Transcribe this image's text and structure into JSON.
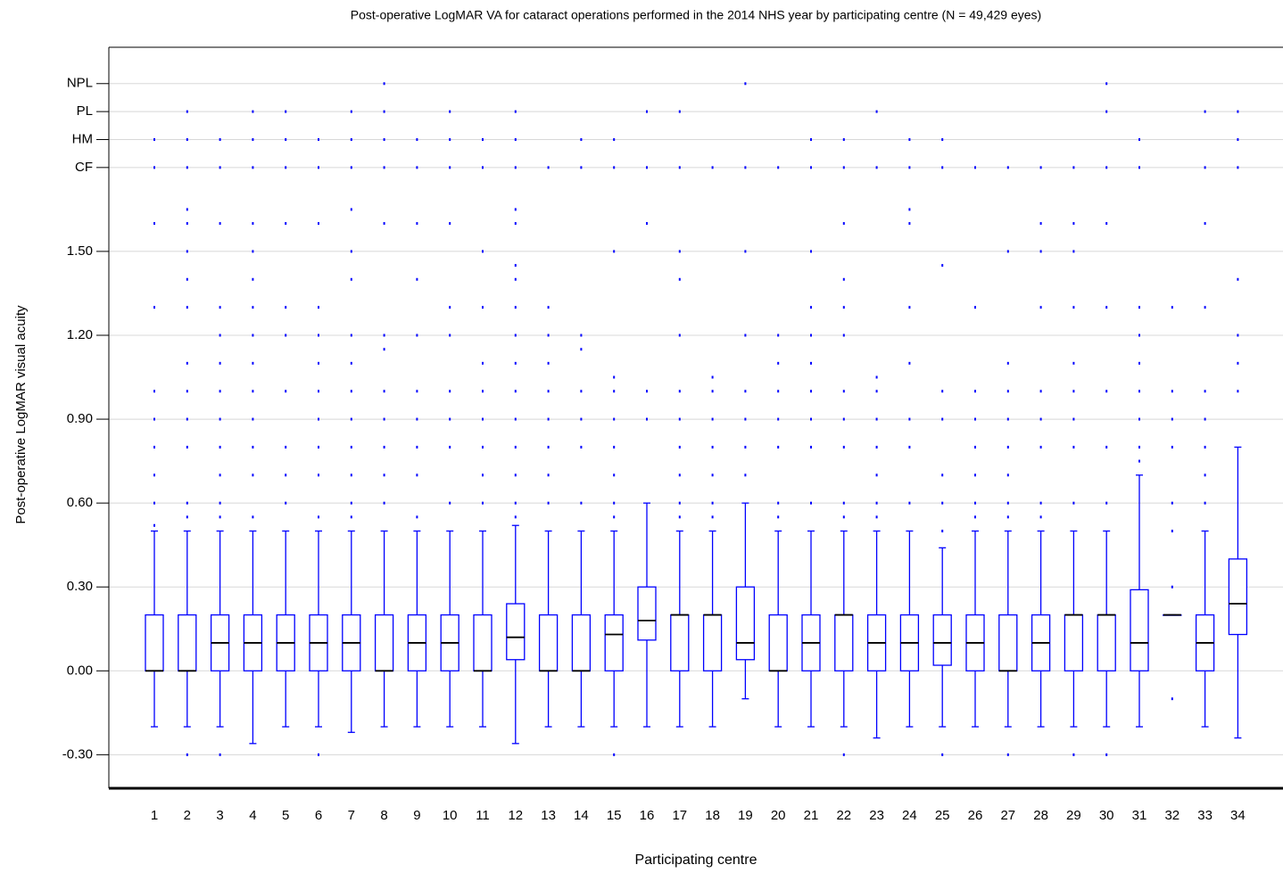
{
  "chart_data": {
    "type": "box",
    "title": "Post-operative LogMAR VA for cataract operations performed in the 2014 NHS year by participating centre (N = 49,429 eyes)",
    "x_label": "Participating centre",
    "y_label": "Post-operative LogMAR visual acuity",
    "color": "#0000ff",
    "grid": true,
    "ylim": [
      -0.42,
      2.23
    ],
    "yticks": [
      {
        "value": -0.3,
        "label": "-0.30"
      },
      {
        "value": 0,
        "label": "0.00"
      },
      {
        "value": 0.3,
        "label": "0.30"
      },
      {
        "value": 0.6,
        "label": "0.60"
      },
      {
        "value": 0.9,
        "label": "0.90"
      },
      {
        "value": 1.2,
        "label": "1.20"
      },
      {
        "value": 1.5,
        "label": "1.50"
      },
      {
        "value": 1.8,
        "label": "CF"
      },
      {
        "value": 1.9,
        "label": "HM"
      },
      {
        "value": 2.0,
        "label": "PL"
      },
      {
        "value": 2.1,
        "label": "NPL"
      }
    ],
    "categories": [
      "1",
      "2",
      "3",
      "4",
      "5",
      "6",
      "7",
      "8",
      "9",
      "10",
      "11",
      "12",
      "13",
      "14",
      "15",
      "16",
      "17",
      "18",
      "19",
      "20",
      "21",
      "22",
      "23",
      "24",
      "25",
      "26",
      "27",
      "28",
      "29",
      "30",
      "31",
      "32",
      "33",
      "34"
    ],
    "boxes": [
      {
        "min": -0.2,
        "q1": 0,
        "median": 0,
        "q3": 0.2,
        "max": 0.5,
        "outliers": [
          0.52,
          0.6,
          0.7,
          0.8,
          0.9,
          1.0,
          1.3,
          1.6,
          1.8,
          1.9
        ]
      },
      {
        "min": -0.2,
        "q1": 0,
        "median": 0,
        "q3": 0.2,
        "max": 0.5,
        "outliers": [
          -0.3,
          0.55,
          0.6,
          0.8,
          0.9,
          1.0,
          1.1,
          1.3,
          1.4,
          1.5,
          1.6,
          1.65,
          1.8,
          1.9,
          2.0
        ]
      },
      {
        "min": -0.2,
        "q1": 0,
        "median": 0.1,
        "q3": 0.2,
        "max": 0.5,
        "outliers": [
          -0.3,
          0.55,
          0.6,
          0.7,
          0.8,
          0.9,
          1.0,
          1.1,
          1.2,
          1.3,
          1.6,
          1.8,
          1.9
        ]
      },
      {
        "min": -0.26,
        "q1": 0,
        "median": 0.1,
        "q3": 0.2,
        "max": 0.5,
        "outliers": [
          0.55,
          0.7,
          0.8,
          0.9,
          1.0,
          1.1,
          1.2,
          1.3,
          1.4,
          1.5,
          1.6,
          1.8,
          1.9,
          2.0
        ]
      },
      {
        "min": -0.2,
        "q1": 0,
        "median": 0.1,
        "q3": 0.2,
        "max": 0.5,
        "outliers": [
          0.6,
          0.7,
          0.8,
          1.0,
          1.2,
          1.3,
          1.6,
          1.8,
          1.9,
          2.0
        ]
      },
      {
        "min": -0.2,
        "q1": 0,
        "median": 0.1,
        "q3": 0.2,
        "max": 0.5,
        "outliers": [
          -0.3,
          0.55,
          0.7,
          0.8,
          0.9,
          1.0,
          1.1,
          1.2,
          1.3,
          1.6,
          1.8,
          1.9
        ]
      },
      {
        "min": -0.22,
        "q1": 0,
        "median": 0.1,
        "q3": 0.2,
        "max": 0.5,
        "outliers": [
          0.55,
          0.6,
          0.7,
          0.8,
          0.9,
          1.0,
          1.1,
          1.2,
          1.4,
          1.5,
          1.65,
          1.8,
          1.9,
          2.0
        ]
      },
      {
        "min": -0.2,
        "q1": 0,
        "median": 0,
        "q3": 0.2,
        "max": 0.5,
        "outliers": [
          0.6,
          0.7,
          0.8,
          0.9,
          1.0,
          1.15,
          1.2,
          1.6,
          1.8,
          1.9,
          2.0,
          2.1
        ]
      },
      {
        "min": -0.2,
        "q1": 0,
        "median": 0.1,
        "q3": 0.2,
        "max": 0.5,
        "outliers": [
          0.55,
          0.7,
          0.8,
          0.9,
          1.0,
          1.2,
          1.4,
          1.6,
          1.8,
          1.9
        ]
      },
      {
        "min": -0.2,
        "q1": 0,
        "median": 0.1,
        "q3": 0.2,
        "max": 0.5,
        "outliers": [
          0.6,
          0.8,
          0.9,
          1.0,
          1.2,
          1.3,
          1.6,
          1.8,
          1.9,
          2.0
        ]
      },
      {
        "min": -0.2,
        "q1": 0,
        "median": 0,
        "q3": 0.2,
        "max": 0.5,
        "outliers": [
          0.6,
          0.7,
          0.8,
          0.9,
          1.0,
          1.1,
          1.3,
          1.5,
          1.8,
          1.9
        ]
      },
      {
        "min": -0.26,
        "q1": 0.04,
        "median": 0.12,
        "q3": 0.24,
        "max": 0.52,
        "outliers": [
          0.55,
          0.6,
          0.7,
          0.8,
          0.9,
          1.0,
          1.1,
          1.2,
          1.3,
          1.4,
          1.45,
          1.6,
          1.65,
          1.8,
          1.9,
          2.0
        ]
      },
      {
        "min": -0.2,
        "q1": 0,
        "median": 0,
        "q3": 0.2,
        "max": 0.5,
        "outliers": [
          0.6,
          0.7,
          0.8,
          0.9,
          1.0,
          1.1,
          1.2,
          1.3,
          1.8
        ]
      },
      {
        "min": -0.2,
        "q1": 0,
        "median": 0,
        "q3": 0.2,
        "max": 0.5,
        "outliers": [
          0.6,
          0.8,
          0.9,
          1.0,
          1.15,
          1.2,
          1.8,
          1.9
        ]
      },
      {
        "min": -0.2,
        "q1": 0,
        "median": 0.13,
        "q3": 0.2,
        "max": 0.5,
        "outliers": [
          -0.3,
          0.55,
          0.6,
          0.7,
          0.8,
          0.9,
          1.0,
          1.05,
          1.5,
          1.8,
          1.9
        ]
      },
      {
        "min": -0.2,
        "q1": 0.11,
        "median": 0.18,
        "q3": 0.3,
        "max": 0.6,
        "outliers": [
          0.9,
          1.0,
          1.6,
          1.8,
          2.0
        ]
      },
      {
        "min": -0.2,
        "q1": 0,
        "median": 0.2,
        "q3": 0.2,
        "max": 0.5,
        "outliers": [
          0.55,
          0.6,
          0.7,
          0.8,
          0.9,
          1.0,
          1.2,
          1.4,
          1.5,
          1.8,
          2.0
        ]
      },
      {
        "min": -0.2,
        "q1": 0,
        "median": 0.2,
        "q3": 0.2,
        "max": 0.5,
        "outliers": [
          0.55,
          0.6,
          0.7,
          0.8,
          0.9,
          1.0,
          1.05,
          1.8
        ]
      },
      {
        "min": -0.1,
        "q1": 0.04,
        "median": 0.1,
        "q3": 0.3,
        "max": 0.6,
        "outliers": [
          0.7,
          0.8,
          0.9,
          1.0,
          1.2,
          1.5,
          1.8,
          2.1
        ]
      },
      {
        "min": -0.2,
        "q1": 0,
        "median": 0,
        "q3": 0.2,
        "max": 0.5,
        "outliers": [
          0.55,
          0.6,
          0.8,
          0.9,
          1.0,
          1.1,
          1.2,
          1.8
        ]
      },
      {
        "min": -0.2,
        "q1": 0,
        "median": 0.1,
        "q3": 0.2,
        "max": 0.5,
        "outliers": [
          0.6,
          0.8,
          0.9,
          1.0,
          1.1,
          1.2,
          1.3,
          1.5,
          1.8,
          1.9
        ]
      },
      {
        "min": -0.2,
        "q1": 0,
        "median": 0.2,
        "q3": 0.2,
        "max": 0.5,
        "outliers": [
          -0.3,
          0.55,
          0.6,
          0.8,
          0.9,
          1.0,
          1.2,
          1.3,
          1.4,
          1.6,
          1.8,
          1.9
        ]
      },
      {
        "min": -0.24,
        "q1": 0,
        "median": 0.1,
        "q3": 0.2,
        "max": 0.5,
        "outliers": [
          0.55,
          0.6,
          0.7,
          0.8,
          0.9,
          1.0,
          1.05,
          1.8,
          2.0
        ]
      },
      {
        "min": -0.2,
        "q1": 0,
        "median": 0.1,
        "q3": 0.2,
        "max": 0.5,
        "outliers": [
          0.6,
          0.8,
          0.9,
          1.1,
          1.3,
          1.6,
          1.65,
          1.8,
          1.9
        ]
      },
      {
        "min": -0.2,
        "q1": 0.02,
        "median": 0.1,
        "q3": 0.2,
        "max": 0.44,
        "outliers": [
          -0.3,
          0.5,
          0.6,
          0.7,
          0.9,
          1.0,
          1.45,
          1.8,
          1.9
        ]
      },
      {
        "min": -0.2,
        "q1": 0,
        "median": 0.1,
        "q3": 0.2,
        "max": 0.5,
        "outliers": [
          0.55,
          0.6,
          0.7,
          0.8,
          0.9,
          1.0,
          1.3,
          1.8
        ]
      },
      {
        "min": -0.2,
        "q1": 0,
        "median": 0,
        "q3": 0.2,
        "max": 0.5,
        "outliers": [
          -0.3,
          0.55,
          0.6,
          0.7,
          0.8,
          0.9,
          1.0,
          1.1,
          1.5,
          1.8
        ]
      },
      {
        "min": -0.2,
        "q1": 0,
        "median": 0.1,
        "q3": 0.2,
        "max": 0.5,
        "outliers": [
          0.55,
          0.6,
          0.8,
          0.9,
          1.0,
          1.3,
          1.5,
          1.6,
          1.8
        ]
      },
      {
        "min": -0.2,
        "q1": 0,
        "median": 0.2,
        "q3": 0.2,
        "max": 0.5,
        "outliers": [
          -0.3,
          0.6,
          0.8,
          0.9,
          1.0,
          1.1,
          1.3,
          1.5,
          1.6,
          1.8
        ]
      },
      {
        "min": -0.2,
        "q1": 0,
        "median": 0.2,
        "q3": 0.2,
        "max": 0.5,
        "outliers": [
          -0.3,
          0.6,
          0.8,
          1.0,
          1.3,
          1.6,
          1.8,
          2.0,
          2.1
        ]
      },
      {
        "min": -0.2,
        "q1": 0,
        "median": 0.1,
        "q3": 0.29,
        "max": 0.7,
        "outliers": [
          0.75,
          0.8,
          0.9,
          1.0,
          1.1,
          1.2,
          1.3,
          1.8,
          1.9
        ]
      },
      {
        "min": 0.2,
        "q1": 0.2,
        "median": 0.2,
        "q3": 0.2,
        "max": 0.2,
        "outliers": [
          -0.1,
          0.3,
          0.5,
          0.6,
          0.8,
          0.9,
          1.0,
          1.3
        ]
      },
      {
        "min": -0.2,
        "q1": 0,
        "median": 0.1,
        "q3": 0.2,
        "max": 0.5,
        "outliers": [
          0.6,
          0.7,
          0.8,
          0.9,
          1.0,
          1.3,
          1.6,
          1.8,
          2.0
        ]
      },
      {
        "min": -0.24,
        "q1": 0.13,
        "median": 0.24,
        "q3": 0.4,
        "max": 0.8,
        "outliers": [
          1.0,
          1.1,
          1.2,
          1.4,
          1.8,
          1.9,
          2.0
        ]
      }
    ]
  }
}
